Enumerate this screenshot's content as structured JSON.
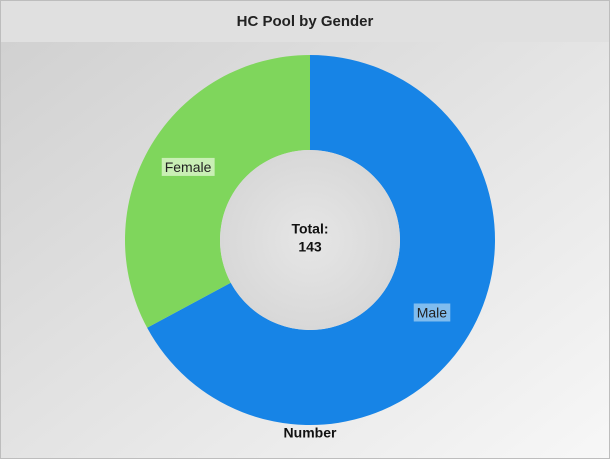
{
  "chart_data": {
    "type": "donut",
    "title": "HC Pool by Gender",
    "x_label": "Number",
    "center_label": "Total:",
    "total": 143,
    "categories": [
      "Male",
      "Female"
    ],
    "values": [
      96,
      47
    ],
    "colors": [
      "#1784e6",
      "#7fd65c"
    ],
    "label_colors": [
      "#8cc2ee",
      "#d2f2bf"
    ]
  }
}
